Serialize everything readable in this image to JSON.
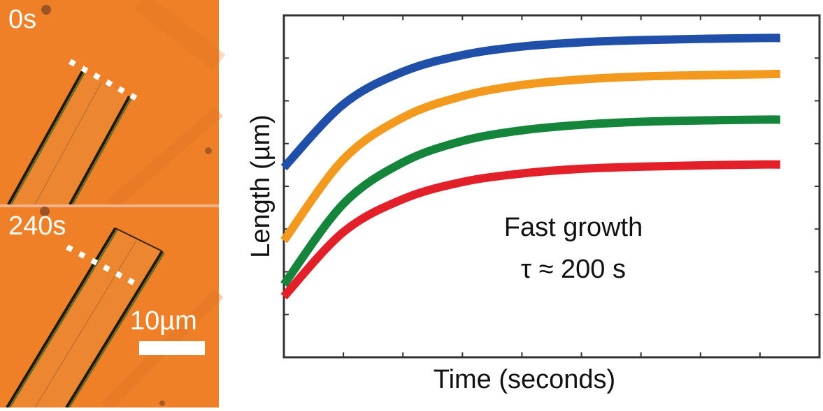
{
  "micrographs": {
    "top_label": "0s",
    "bottom_label": "240s",
    "scale_bar_label": "10µm",
    "background_color": "#f08028"
  },
  "chart_data": {
    "type": "line",
    "title": "",
    "xlabel": "Time (seconds)",
    "ylabel": "Length (µm)",
    "xlim": [
      0,
      9
    ],
    "ylim": [
      0,
      8
    ],
    "x_ticks_count": 9,
    "y_ticks_count": 8,
    "tick_labels_shown": false,
    "grid": false,
    "annotation": {
      "line1": "Fast growth",
      "line2": "τ ≈ 200 s"
    },
    "x": [
      0,
      1,
      2,
      3,
      4,
      5,
      6,
      7,
      8,
      8.34
    ],
    "series": [
      {
        "name": "blue",
        "color": "#1f4fa8",
        "values": [
          4.44,
          5.92,
          6.68,
          7.07,
          7.27,
          7.37,
          7.42,
          7.45,
          7.47,
          7.47
        ]
      },
      {
        "name": "orange",
        "color": "#f39a1e",
        "values": [
          2.73,
          4.63,
          5.61,
          6.11,
          6.37,
          6.5,
          6.57,
          6.6,
          6.62,
          6.63
        ]
      },
      {
        "name": "green",
        "color": "#14853a",
        "values": [
          1.7,
          3.59,
          4.56,
          5.06,
          5.31,
          5.44,
          5.51,
          5.54,
          5.56,
          5.56
        ]
      },
      {
        "name": "red",
        "color": "#e3202a",
        "values": [
          1.42,
          2.93,
          3.7,
          4.1,
          4.3,
          4.41,
          4.46,
          4.49,
          4.51,
          4.51
        ]
      }
    ]
  }
}
